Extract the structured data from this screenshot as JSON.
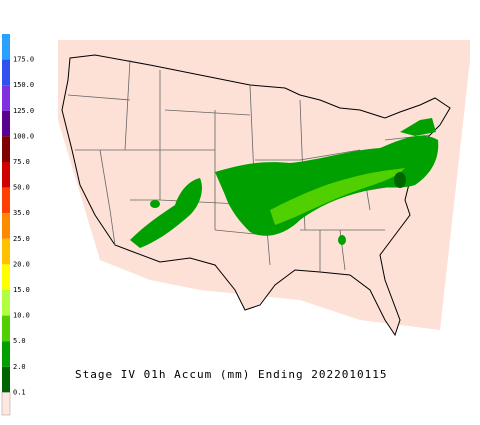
{
  "caption": "Stage IV 01h Accum (mm) Ending 2022010115",
  "legend": [
    {
      "label": "175.0",
      "color": "#2aa0ff"
    },
    {
      "label": "150.0",
      "color": "#3050f0"
    },
    {
      "label": "125.0",
      "color": "#8030e0"
    },
    {
      "label": "100.0",
      "color": "#5a0090"
    },
    {
      "label": "75.0",
      "color": "#800000"
    },
    {
      "label": "50.0",
      "color": "#d00000"
    },
    {
      "label": "35.0",
      "color": "#ff4000"
    },
    {
      "label": "25.0",
      "color": "#ff8a00"
    },
    {
      "label": "20.0",
      "color": "#ffc000"
    },
    {
      "label": "15.0",
      "color": "#ffff00"
    },
    {
      "label": "10.0",
      "color": "#b0ff40"
    },
    {
      "label": "5.0",
      "color": "#50d000"
    },
    {
      "label": "2.0",
      "color": "#00a000"
    },
    {
      "label": "0.1",
      "color": "#006400"
    }
  ],
  "base_color": "#ffe8e0"
}
